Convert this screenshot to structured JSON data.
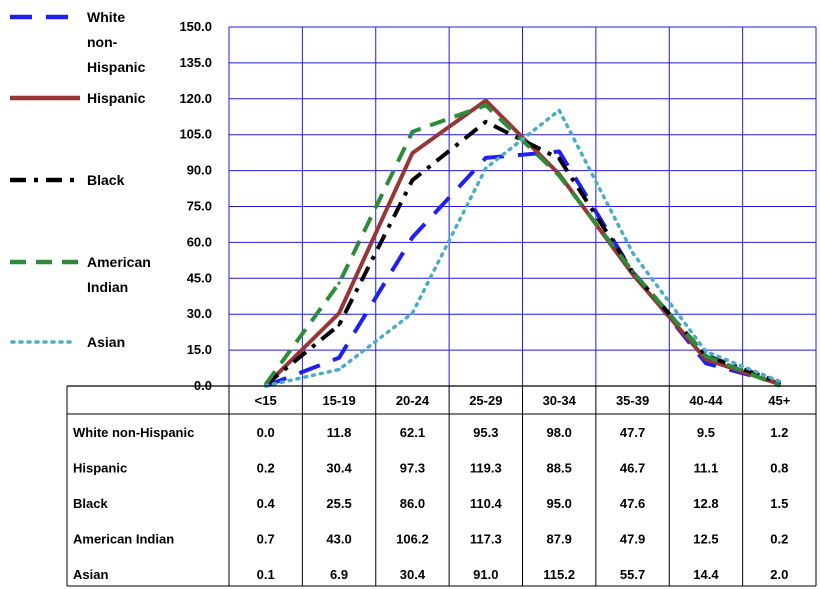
{
  "chart_data": {
    "type": "line",
    "categories": [
      "<15",
      "15-19",
      "20-24",
      "25-29",
      "30-34",
      "35-39",
      "40-44",
      "45+"
    ],
    "ylim": [
      0,
      150
    ],
    "yticks": [
      "0.0",
      "15.0",
      "30.0",
      "45.0",
      "60.0",
      "75.0",
      "90.0",
      "105.0",
      "120.0",
      "135.0",
      "150.0"
    ],
    "grid": true,
    "legend_position": "left",
    "series": [
      {
        "name": "White non-Hispanic",
        "table_label": "White non-Hispanic",
        "legend_lines": [
          "White",
          "non-",
          "Hispanic"
        ],
        "color": "#2020ee",
        "dash": "long-dash",
        "display_values": [
          "0.0",
          "11.8",
          "62.1",
          "95.3",
          "98.0",
          "47.7",
          "9.5",
          "1.2"
        ],
        "values": [
          0.0,
          11.8,
          62.1,
          95.3,
          98.0,
          47.7,
          9.5,
          1.2
        ]
      },
      {
        "name": "Hispanic",
        "table_label": "Hispanic",
        "legend_lines": [
          "Hispanic"
        ],
        "color": "#953735",
        "dash": "solid",
        "display_values": [
          "0.2",
          "30.4",
          "97.3",
          "119.3",
          "88.5",
          "46.7",
          "11.1",
          "0.8"
        ],
        "values": [
          0.2,
          30.4,
          97.3,
          119.3,
          88.5,
          46.7,
          11.1,
          0.8
        ]
      },
      {
        "name": "Black",
        "table_label": "Black",
        "legend_lines": [
          "Black"
        ],
        "color": "#000000",
        "dash": "dash-dot",
        "display_values": [
          "0.4",
          "25.5",
          "86.0",
          "110.4",
          "95.0",
          "47.6",
          "12.8",
          "1.5"
        ],
        "values": [
          0.4,
          25.5,
          86.0,
          110.4,
          95.0,
          47.6,
          12.8,
          1.5
        ]
      },
      {
        "name": "American Indian",
        "table_label": "American Indian",
        "legend_lines": [
          "American",
          "Indian"
        ],
        "color": "#2e8b3a",
        "dash": "dash",
        "display_values": [
          "0.7",
          "43.0",
          "106.2",
          "117.3",
          "87.9",
          "47.9",
          "12.5",
          "0.2"
        ],
        "values": [
          0.7,
          43.0,
          106.2,
          117.3,
          87.9,
          47.9,
          12.5,
          0.2
        ]
      },
      {
        "name": "Asian",
        "table_label": "Asian",
        "legend_lines": [
          "Asian"
        ],
        "color": "#4bacc6",
        "dash": "dotted",
        "display_values": [
          "0.1",
          "6.9",
          "30.4",
          "91.0",
          "115.2",
          "55.7",
          "14.4",
          "2.0"
        ],
        "values": [
          0.1,
          6.9,
          30.4,
          91.0,
          115.2,
          55.7,
          14.4,
          2.0
        ]
      }
    ]
  }
}
